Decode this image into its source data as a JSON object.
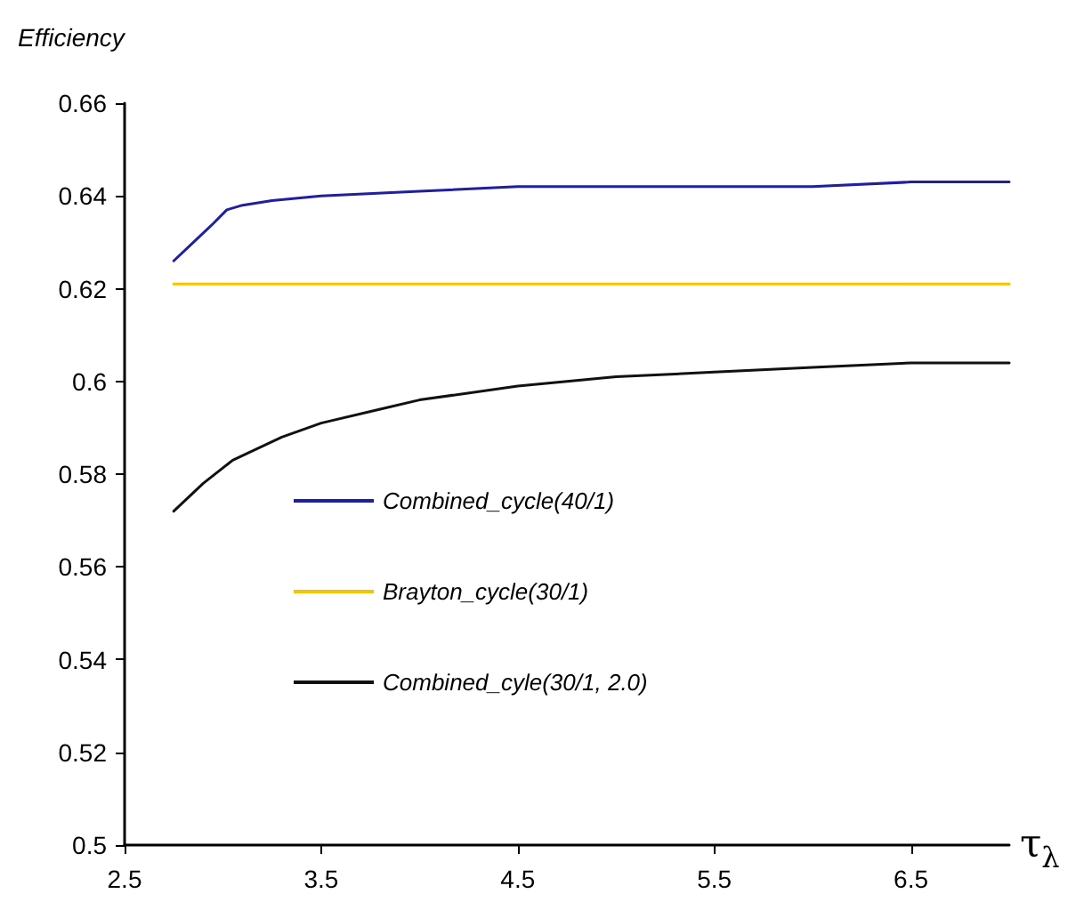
{
  "chart_data": {
    "type": "line",
    "ylabel": "Efficiency",
    "xlabel": "τ$_{λ}$",
    "xlim": [
      2.5,
      7
    ],
    "xticks": [
      2.5,
      3.5,
      4.5,
      5.5,
      6.5
    ],
    "ylim": [
      0.5,
      0.66
    ],
    "yticks": [
      0.5,
      0.52,
      0.54,
      0.56,
      0.58,
      0.6,
      0.62,
      0.64,
      0.66
    ],
    "grid": false,
    "legend": "left",
    "marker": "none",
    "line_style": "solid",
    "series": [
      {
        "name": "Combined_cycle(40/1)",
        "color": "#1f1fa0",
        "x": [
          2.75,
          2.85,
          2.95,
          3.02,
          3.1,
          3.25,
          3.5,
          4.0,
          4.5,
          5.0,
          5.5,
          6.0,
          6.5,
          7.0
        ],
        "values": [
          0.626,
          0.63,
          0.634,
          0.637,
          0.638,
          0.639,
          0.64,
          0.641,
          0.642,
          0.642,
          0.642,
          0.642,
          0.643,
          0.643
        ]
      },
      {
        "name": "Brayton_cycle(30/1)",
        "color": "#f5c400",
        "x": [
          2.75,
          7.0
        ],
        "values": [
          0.621,
          0.621
        ]
      },
      {
        "name": "Combined_cyle(30/1, 2.0)",
        "color": "#111111",
        "x": [
          2.75,
          2.9,
          3.05,
          3.3,
          3.5,
          3.8,
          4.0,
          4.5,
          5.0,
          5.5,
          6.0,
          6.5,
          7.0
        ],
        "values": [
          0.572,
          0.578,
          0.583,
          0.588,
          0.591,
          0.594,
          0.596,
          0.599,
          0.601,
          0.602,
          0.603,
          0.604,
          0.604
        ]
      }
    ]
  }
}
